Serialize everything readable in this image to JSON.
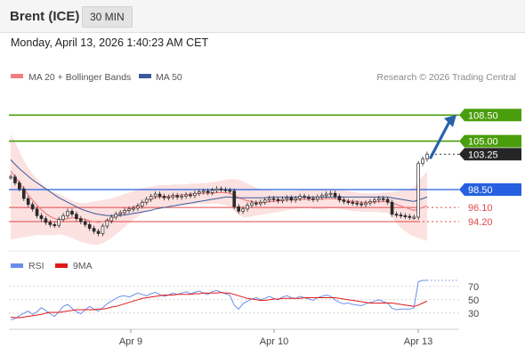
{
  "header": {
    "instrument": "Brent (ICE)",
    "interval": "30 MIN"
  },
  "timestamp": "Monday, April 13, 2026 1:40:23 AM CET",
  "copyright": "Research © 2026 Trading Central",
  "colors": {
    "resistance": "#4a9e0c",
    "pivot": "#2660e0",
    "support": "#e04848",
    "last_price_box": "#262626",
    "band_fill": "#fcdcdc",
    "ma20": "#f08080",
    "ma50": "#3a5a9a",
    "rsi": "#6a8ee8",
    "rsi_ma": "#e01818",
    "candle": "#2a2a2a",
    "arrow": "#2a62a8"
  },
  "chart_data": [
    {
      "type": "line",
      "legend": [
        {
          "name": "MA 20 + Bollinger Bands",
          "color": "#f08080"
        },
        {
          "name": "MA 50",
          "color": "#3a5a9a"
        }
      ],
      "x_ticks": [
        "Apr 9",
        "Apr 10",
        "Apr 13"
      ],
      "ylim": [
        90.5,
        112.0
      ],
      "levels": [
        {
          "value": 108.5,
          "label": "108.50",
          "kind": "resistance"
        },
        {
          "value": 105.0,
          "label": "105.00",
          "kind": "resistance"
        },
        {
          "value": 103.25,
          "label": "103.25",
          "kind": "last"
        },
        {
          "value": 98.5,
          "label": "98.50",
          "kind": "pivot"
        },
        {
          "value": 96.1,
          "label": "96.10",
          "kind": "support"
        },
        {
          "value": 94.2,
          "label": "94.20",
          "kind": "support"
        }
      ],
      "price": [
        100.2,
        99.4,
        98.6,
        97.3,
        96.5,
        95.9,
        95.0,
        94.6,
        94.1,
        93.8,
        93.7,
        94.5,
        95.0,
        95.6,
        95.2,
        94.6,
        94.2,
        93.8,
        93.3,
        92.9,
        92.6,
        93.6,
        94.3,
        94.8,
        95.2,
        95.4,
        95.7,
        95.9,
        96.0,
        96.3,
        96.8,
        97.2,
        97.6,
        97.9,
        97.6,
        97.4,
        97.5,
        97.7,
        97.5,
        97.6,
        97.8,
        97.7,
        98.0,
        98.2,
        98.3,
        98.1,
        98.4,
        98.6,
        98.5,
        98.4,
        98.3,
        96.2,
        95.6,
        95.9,
        96.4,
        96.7,
        96.6,
        96.8,
        97.1,
        97.3,
        97.2,
        97.0,
        97.2,
        97.4,
        97.1,
        97.3,
        97.6,
        97.5,
        97.3,
        97.2,
        97.5,
        97.7,
        97.9,
        98.0,
        97.6,
        97.1,
        96.9,
        96.8,
        96.7,
        96.6,
        96.5,
        96.7,
        96.9,
        97.1,
        97.3,
        97.2,
        96.8,
        95.2,
        95.1,
        95.0,
        94.9,
        94.8,
        94.8,
        102.0,
        102.6,
        103.25
      ],
      "ma20": [
        101.0,
        100.2,
        99.4,
        98.6,
        97.8,
        97.1,
        96.4,
        95.8,
        95.3,
        94.9,
        94.6,
        94.5,
        94.5,
        94.6,
        94.7,
        94.7,
        94.6,
        94.5,
        94.3,
        94.2,
        94.1,
        94.2,
        94.4,
        94.6,
        94.9,
        95.2,
        95.5,
        95.8,
        96.1,
        96.4,
        96.7,
        97.0,
        97.2,
        97.4,
        97.5,
        97.6,
        97.6,
        97.7,
        97.7,
        97.8,
        97.8,
        97.9,
        97.9,
        98.0,
        98.0,
        98.0,
        98.0,
        98.1,
        98.1,
        98.1,
        98.0,
        97.7,
        97.4,
        97.2,
        97.0,
        96.9,
        96.8,
        96.8,
        96.8,
        96.9,
        96.9,
        97.0,
        97.0,
        97.1,
        97.1,
        97.1,
        97.2,
        97.2,
        97.2,
        97.2,
        97.2,
        97.2,
        97.3,
        97.3,
        97.3,
        97.2,
        97.1,
        97.0,
        96.9,
        96.9,
        96.8,
        96.8,
        96.8,
        96.8,
        96.9,
        96.9,
        96.9,
        96.7,
        96.5,
        96.3,
        96.1,
        95.9,
        95.7,
        95.9,
        96.1,
        96.3
      ],
      "bb_upper": [
        106.0,
        104.8,
        103.6,
        102.4,
        101.4,
        100.6,
        99.9,
        99.3,
        98.8,
        98.4,
        98.1,
        97.9,
        97.6,
        97.3,
        97.0,
        96.8,
        96.7,
        96.7,
        96.8,
        96.9,
        97.0,
        97.1,
        97.2,
        97.3,
        97.5,
        97.7,
        97.9,
        98.1,
        98.3,
        98.5,
        98.7,
        98.8,
        98.9,
        99.0,
        99.1,
        99.1,
        99.1,
        99.2,
        99.2,
        99.2,
        99.2,
        99.3,
        99.3,
        99.3,
        99.4,
        99.4,
        99.5,
        99.6,
        99.7,
        99.8,
        99.9,
        99.9,
        99.8,
        99.6,
        99.3,
        99.0,
        98.8,
        98.6,
        98.5,
        98.4,
        98.3,
        98.3,
        98.3,
        98.3,
        98.3,
        98.3,
        98.4,
        98.4,
        98.4,
        98.5,
        98.5,
        98.6,
        98.6,
        98.6,
        98.6,
        98.5,
        98.4,
        98.3,
        98.2,
        98.1,
        98.0,
        98.0,
        98.0,
        98.0,
        98.0,
        98.1,
        98.1,
        98.2,
        98.3,
        98.4,
        98.5,
        98.6,
        98.8,
        99.6,
        100.3,
        101.0
      ],
      "bb_lower": [
        91.8,
        91.9,
        92.0,
        92.1,
        92.2,
        92.3,
        92.4,
        92.4,
        92.4,
        92.4,
        92.4,
        92.5,
        92.4,
        92.2,
        92.0,
        91.7,
        91.5,
        91.3,
        91.2,
        91.1,
        91.1,
        91.3,
        91.6,
        92.0,
        92.5,
        93.0,
        93.5,
        94.0,
        94.5,
        94.9,
        95.3,
        95.6,
        95.8,
        96.0,
        96.1,
        96.2,
        96.3,
        96.3,
        96.3,
        96.4,
        96.4,
        96.5,
        96.5,
        96.6,
        96.6,
        96.6,
        96.6,
        96.6,
        96.5,
        96.4,
        96.2,
        95.6,
        95.1,
        94.8,
        94.8,
        94.9,
        95.0,
        95.1,
        95.2,
        95.3,
        95.4,
        95.5,
        95.6,
        95.7,
        95.8,
        95.9,
        96.0,
        96.0,
        96.0,
        95.9,
        95.9,
        95.8,
        95.9,
        96.0,
        96.0,
        95.9,
        95.8,
        95.7,
        95.6,
        95.6,
        95.5,
        95.5,
        95.5,
        95.5,
        95.5,
        95.4,
        95.4,
        94.8,
        94.0,
        93.4,
        92.9,
        92.5,
        92.2,
        92.0,
        91.8,
        91.6
      ],
      "ma50": [
        102.5,
        101.9,
        101.3,
        100.8,
        100.3,
        99.8,
        99.4,
        99.0,
        98.6,
        98.2,
        97.8,
        97.4,
        97.1,
        96.8,
        96.5,
        96.2,
        95.9,
        95.7,
        95.5,
        95.3,
        95.2,
        95.1,
        95.0,
        95.0,
        95.0,
        95.0,
        95.1,
        95.2,
        95.3,
        95.4,
        95.5,
        95.6,
        95.7,
        95.9,
        96.0,
        96.1,
        96.2,
        96.3,
        96.4,
        96.5,
        96.6,
        96.7,
        96.8,
        96.9,
        97.0,
        97.1,
        97.2,
        97.3,
        97.4,
        97.5,
        97.5,
        97.4,
        97.4,
        97.4,
        97.4,
        97.4,
        97.4,
        97.4,
        97.4,
        97.5,
        97.5,
        97.5,
        97.5,
        97.5,
        97.5,
        97.5,
        97.5,
        97.5,
        97.5,
        97.5,
        97.5,
        97.5,
        97.5,
        97.5,
        97.5,
        97.5,
        97.5,
        97.5,
        97.5,
        97.5,
        97.5,
        97.5,
        97.5,
        97.5,
        97.5,
        97.5,
        97.5,
        97.4,
        97.3,
        97.2,
        97.1,
        97.0,
        96.9,
        97.1,
        97.3,
        97.5
      ]
    },
    {
      "type": "line",
      "legend": [
        {
          "name": "RSI",
          "color": "#6a8ee8"
        },
        {
          "name": "9MA",
          "color": "#e01818"
        }
      ],
      "x_ticks": [
        "Apr 9",
        "Apr 10",
        "Apr 13"
      ],
      "y_ticks": [
        30,
        50,
        70
      ],
      "ylim": [
        11,
        83
      ],
      "rsi": [
        20,
        22,
        26,
        30,
        33,
        28,
        32,
        38,
        34,
        29,
        25,
        32,
        40,
        43,
        37,
        32,
        29,
        35,
        40,
        36,
        33,
        38,
        44,
        48,
        52,
        55,
        56,
        54,
        57,
        60,
        58,
        56,
        59,
        61,
        58,
        55,
        57,
        60,
        58,
        60,
        62,
        59,
        61,
        63,
        60,
        58,
        62,
        64,
        61,
        59,
        57,
        42,
        36,
        44,
        48,
        51,
        53,
        50,
        52,
        55,
        52,
        50,
        54,
        56,
        53,
        52,
        55,
        53,
        51,
        49,
        53,
        55,
        57,
        55,
        50,
        46,
        44,
        45,
        43,
        42,
        41,
        44,
        46,
        48,
        50,
        47,
        45,
        37,
        35,
        36,
        36,
        36,
        38,
        77,
        79,
        79
      ],
      "rsi_ma": [
        24,
        23,
        23,
        24,
        25,
        26,
        27,
        28,
        30,
        31,
        31,
        31,
        32,
        33,
        34,
        35,
        35,
        35,
        35,
        35,
        36,
        36,
        37,
        39,
        40,
        42,
        44,
        46,
        48,
        50,
        52,
        53,
        54,
        55,
        56,
        57,
        57,
        57,
        58,
        58,
        58,
        58,
        59,
        59,
        60,
        60,
        60,
        60,
        61,
        60,
        60,
        58,
        56,
        54,
        52,
        51,
        50,
        49,
        49,
        50,
        51,
        51,
        52,
        52,
        52,
        52,
        52,
        53,
        53,
        53,
        53,
        53,
        53,
        53,
        53,
        52,
        51,
        50,
        49,
        48,
        47,
        46,
        45,
        45,
        45,
        45,
        45,
        45,
        44,
        43,
        42,
        41,
        40,
        42,
        45,
        48
      ]
    }
  ]
}
